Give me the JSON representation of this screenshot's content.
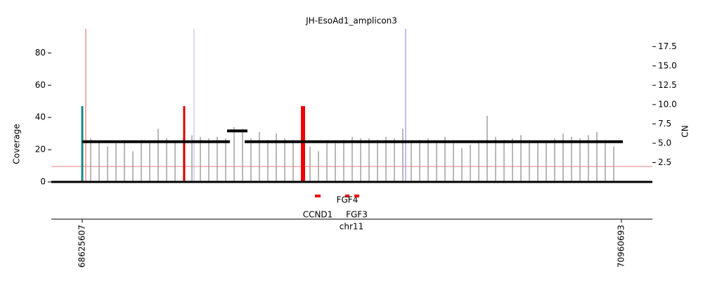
{
  "chart_data": {
    "type": "amplicon",
    "title": "JH-EsoAd1_amplicon3",
    "ylabel": "Coverage",
    "y2label": "CN",
    "xlabel": "chr11",
    "xlim": [
      68491650,
      71094650
    ],
    "xticks": [
      68625607,
      70960693
    ],
    "ylim": [
      0,
      95
    ],
    "yticks": [
      0,
      20,
      40,
      60,
      80
    ],
    "y2lim": [
      0,
      19.8
    ],
    "y2ticks": [
      2.5,
      {
        "value": 5,
        "label": "5.0"
      },
      7.5,
      {
        "value": 10,
        "label": "10.0"
      },
      12.5,
      {
        "value": 15,
        "label": "15.0"
      },
      17.5
    ],
    "coverage": {
      "color": "#a0a0a0",
      "x": [
        68625607,
        68662140,
        68698673,
        68735206,
        68771739,
        68808272,
        68844805,
        68881338,
        68917871,
        68954404,
        68990937,
        69027470,
        69064003,
        69100536,
        69137069,
        69173602,
        69210135,
        69246668,
        69283201,
        69319734,
        69356267,
        69392800,
        69429333,
        69465866,
        69502399,
        69538932,
        69575465,
        69611998,
        69648531,
        69685064,
        69721597,
        69758130,
        69794663,
        69831196,
        69867729,
        69904262,
        69940795,
        69977328,
        70013861,
        70050394,
        70086927,
        70123460,
        70159993,
        70196526,
        70233059,
        70269592,
        70306125,
        70342658,
        70379191,
        70415724,
        70452257,
        70488790,
        70525323,
        70561856,
        70598389,
        70634922,
        70671455,
        70707988,
        70744521,
        70781054,
        70817587,
        70854120,
        70890653,
        70927186
      ],
      "values": [
        26,
        27,
        25,
        22,
        24,
        26,
        19,
        25,
        24,
        33,
        27,
        25,
        27,
        29,
        28,
        27,
        28,
        27,
        34,
        33,
        27,
        31,
        26,
        30,
        27,
        25,
        24,
        22,
        19,
        24,
        24,
        26,
        28,
        27,
        27,
        26,
        28,
        27,
        33,
        25,
        26,
        27,
        25,
        28,
        24,
        21,
        23,
        25,
        41,
        28,
        26,
        27,
        29,
        26,
        25,
        24,
        27,
        30,
        28,
        27,
        29,
        31,
        24,
        22
      ]
    },
    "breakpoints": {
      "x": [
        68625607,
        69067045,
        69581549
      ],
      "values": [
        47,
        47,
        47
      ],
      "colors": [
        "#138a8a",
        "#e00000",
        "#f00000"
      ]
    },
    "vlines": {
      "x": [
        68640829,
        69109667,
        70026031
      ],
      "colors": [
        "#e06050",
        "#b8b0e8",
        "#8080f0"
      ]
    },
    "cn_threshold": 2,
    "threshold_color": "#e08080",
    "segments": {
      "color": "#000000",
      "start": [
        68625607,
        69252754,
        69328862
      ],
      "end": [
        69264931,
        69341040,
        70966751
      ],
      "values": [
        5.2,
        6.6,
        5.2
      ]
    },
    "genes": {
      "color": "#f00000",
      "names": [
        "CCND1",
        "FGF4",
        "FGF3"
      ],
      "start": [
        69633303,
        69764213,
        69803790
      ],
      "end": [
        69657659,
        69782479,
        69825101
      ]
    }
  }
}
